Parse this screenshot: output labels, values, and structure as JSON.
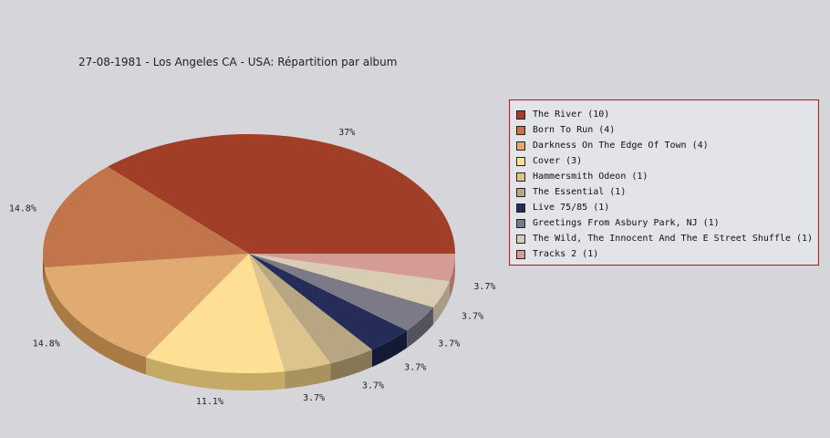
{
  "chart_data": {
    "type": "pie",
    "title": "27-08-1981 - Los Angeles CA - USA:  Répartition par album",
    "legend_position": "right",
    "slices": [
      {
        "label": "The River (10)",
        "value": 10,
        "percent_label": "37%",
        "color": "#a03e28",
        "side": "#6e0a00"
      },
      {
        "label": "Born To Run (4)",
        "value": 4,
        "percent_label": "14.8%",
        "color": "#c2744a",
        "side": "#8e4a1e"
      },
      {
        "label": "Darkness On The Edge Of Town (4)",
        "value": 4,
        "percent_label": "14.8%",
        "color": "#e0aa70",
        "side": "#aa7a44"
      },
      {
        "label": "Cover (3)",
        "value": 3,
        "percent_label": "11.1%",
        "color": "#fedf94",
        "side": "#c4aa66"
      },
      {
        "label": "Hammersmith Odeon  (1)",
        "value": 1,
        "percent_label": "3.7%",
        "color": "#dcc48c",
        "side": "#a89260"
      },
      {
        "label": "The Essential (1)",
        "value": 1,
        "percent_label": "3.7%",
        "color": "#b8a682",
        "side": "#877656"
      },
      {
        "label": "Live 75/85 (1)",
        "value": 1,
        "percent_label": "3.7%",
        "color": "#262c58",
        "side": "#141a36"
      },
      {
        "label": "Greetings From Asbury Park, NJ (1)",
        "value": 1,
        "percent_label": "3.7%",
        "color": "#7c7a86",
        "side": "#55535e"
      },
      {
        "label": "The Wild, The Innocent And The E Street Shuffle (1)",
        "value": 1,
        "percent_label": "3.7%",
        "color": "#d8ccb4",
        "side": "#a89e88"
      },
      {
        "label": "Tracks 2 (1)",
        "value": 1,
        "percent_label": "3.7%",
        "color": "#d49c94",
        "side": "#a8726a"
      }
    ]
  }
}
